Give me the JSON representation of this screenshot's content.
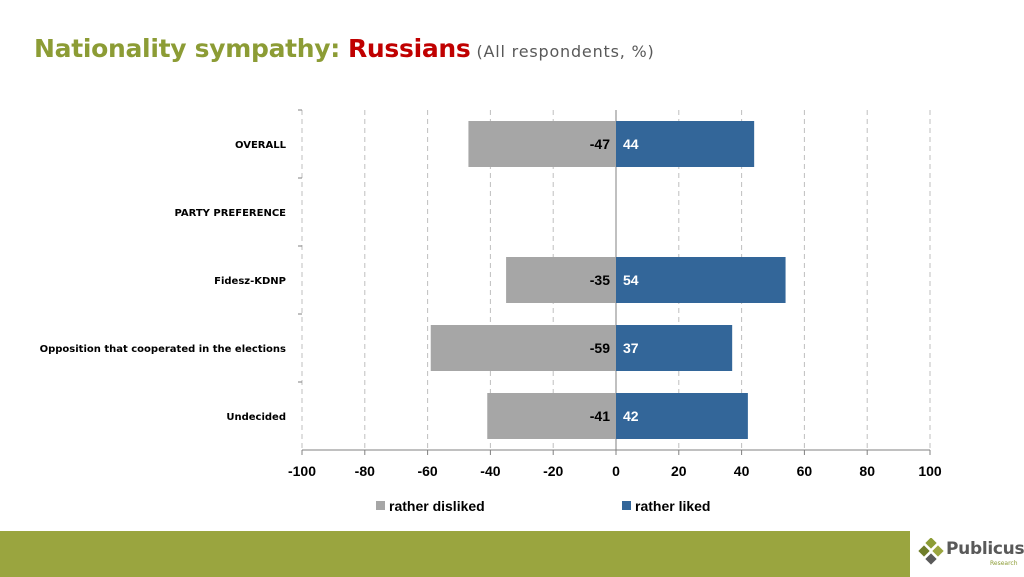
{
  "header": {
    "title_main": "Nationality sympathy:",
    "title_subject": "Russians",
    "title_note": "(All respondents, %)"
  },
  "chart_data": {
    "type": "bar",
    "orientation": "horizontal",
    "stacked": "diverging",
    "categories": [
      "OVERALL",
      "PARTY PREFERENCE",
      "Fidesz-KDNP",
      "Opposition that cooperated in the elections",
      "Undecided"
    ],
    "series": [
      {
        "name": "rather disliked",
        "color": "#a6a6a6",
        "values": [
          -47,
          null,
          -35,
          -59,
          -41
        ]
      },
      {
        "name": "rather liked",
        "color": "#336699",
        "values": [
          44,
          null,
          54,
          37,
          42
        ]
      }
    ],
    "xlim": [
      -100,
      100
    ],
    "xticks": [
      -100,
      -80,
      -60,
      -40,
      -20,
      0,
      20,
      40,
      60,
      80,
      100
    ],
    "grid": "vertical dashed",
    "legend": "bottom"
  },
  "logo": {
    "name": "Publicus",
    "tagline": "Research"
  },
  "colors": {
    "title_green": "#8c9c35",
    "title_red": "#c00000",
    "footer_green": "#9aa53f",
    "logo_text": "#595959"
  }
}
